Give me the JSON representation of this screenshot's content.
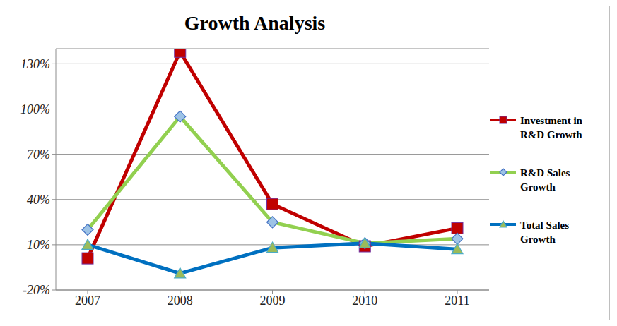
{
  "chart_data": {
    "type": "line",
    "title": "Growth Analysis",
    "categories": [
      "2007",
      "2008",
      "2009",
      "2010",
      "2011"
    ],
    "series": [
      {
        "name": "Investment in R&D Growth",
        "color": "#c00000",
        "marker": "square",
        "values": [
          1,
          138,
          37,
          9,
          21
        ]
      },
      {
        "name": "R&D Sales Growth",
        "color": "#92d050",
        "marker": "diamond",
        "values": [
          20,
          95,
          25,
          11,
          14
        ]
      },
      {
        "name": "Total Sales Growth",
        "color": "#0070c0",
        "marker": "triangle",
        "values": [
          10,
          -9,
          8,
          11,
          7
        ]
      }
    ],
    "ylim": [
      -20,
      140
    ],
    "yticks": [
      {
        "value": -20,
        "label": "-20%"
      },
      {
        "value": 10,
        "label": "10%"
      },
      {
        "value": 40,
        "label": "40%"
      },
      {
        "value": 70,
        "label": "70%"
      },
      {
        "value": 100,
        "label": "100%"
      },
      {
        "value": 130,
        "label": "130%"
      }
    ],
    "grid": true,
    "legend": "right"
  }
}
